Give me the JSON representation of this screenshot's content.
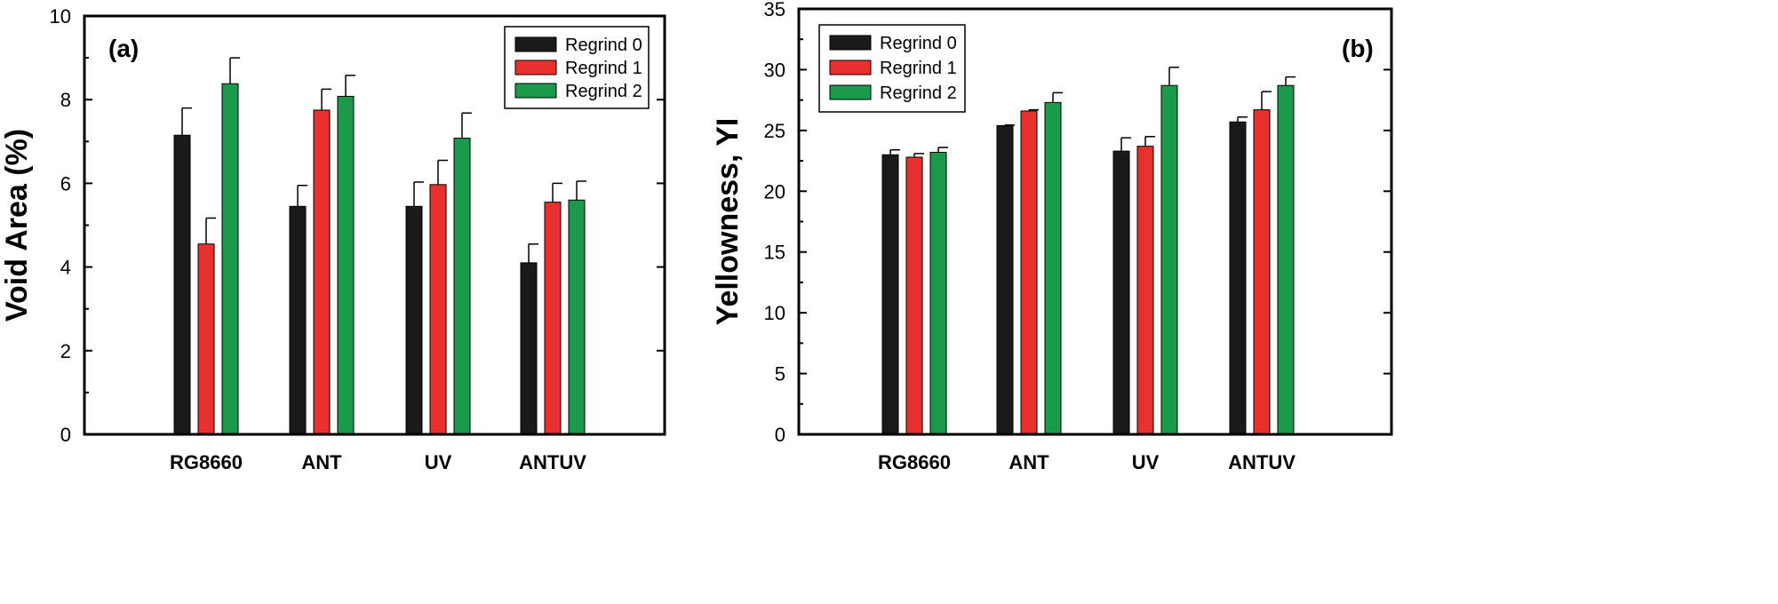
{
  "chart_data": [
    {
      "type": "bar",
      "panel_label": "(a)",
      "ylabel": "Void Area (%)",
      "xlabel": "",
      "ylim": [
        0,
        10
      ],
      "yticks": [
        0,
        2,
        4,
        6,
        8,
        10
      ],
      "categories": [
        "RG8660",
        "ANT",
        "UV",
        "ANTUV"
      ],
      "legend_position": "top-right",
      "series": [
        {
          "name": "Regrind 0",
          "color": "#1a1a1a",
          "values": [
            7.15,
            5.45,
            5.45,
            4.1
          ],
          "errors": [
            0.65,
            0.5,
            0.58,
            0.45
          ]
        },
        {
          "name": "Regrind 1",
          "color": "#e8302e",
          "values": [
            4.55,
            7.75,
            5.97,
            5.55
          ],
          "errors": [
            0.62,
            0.5,
            0.58,
            0.45
          ]
        },
        {
          "name": "Regrind 2",
          "color": "#1a9a4a",
          "values": [
            8.38,
            8.08,
            7.08,
            5.6
          ],
          "errors": [
            0.62,
            0.5,
            0.6,
            0.45
          ]
        }
      ]
    },
    {
      "type": "bar",
      "panel_label": "(b)",
      "ylabel": "Yellowness, YI",
      "xlabel": "",
      "ylim": [
        0,
        35
      ],
      "yticks": [
        0,
        5,
        10,
        15,
        20,
        25,
        30,
        35
      ],
      "categories": [
        "RG8660",
        "ANT",
        "UV",
        "ANTUV"
      ],
      "legend_position": "top-left",
      "series": [
        {
          "name": "Regrind 0",
          "color": "#1a1a1a",
          "values": [
            23.0,
            25.4,
            23.3,
            25.7
          ],
          "errors": [
            0.4,
            0.05,
            1.1,
            0.4
          ]
        },
        {
          "name": "Regrind 1",
          "color": "#e8302e",
          "values": [
            22.8,
            26.6,
            23.7,
            26.7
          ],
          "errors": [
            0.3,
            0.1,
            0.8,
            1.5
          ]
        },
        {
          "name": "Regrind 2",
          "color": "#1a9a4a",
          "values": [
            23.2,
            27.3,
            28.7,
            28.7
          ],
          "errors": [
            0.4,
            0.8,
            1.5,
            0.7
          ]
        }
      ]
    }
  ]
}
